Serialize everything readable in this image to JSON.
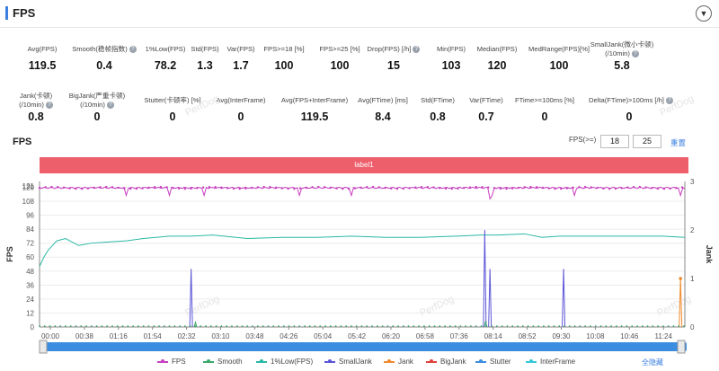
{
  "header": {
    "title": "FPS",
    "collapse_icon": "chevron-down-icon"
  },
  "metrics_row1": [
    {
      "label": "Avg(FPS)",
      "value": "119.5",
      "help": false
    },
    {
      "label": "Smooth(稳帧指数)",
      "value": "0.4",
      "help": true
    },
    {
      "label": "1%Low(FPS)",
      "value": "78.2",
      "help": false
    },
    {
      "label": "Std(FPS)",
      "value": "1.3",
      "help": false
    },
    {
      "label": "Var(FPS)",
      "value": "1.7",
      "help": false
    },
    {
      "label": "FPS>=18 [%]",
      "value": "100",
      "help": false
    },
    {
      "label": "FPS>=25 [%]",
      "value": "100",
      "help": false
    },
    {
      "label": "Drop(FPS) [/h]",
      "value": "15",
      "help": true
    },
    {
      "label": "Min(FPS)",
      "value": "103",
      "help": false
    },
    {
      "label": "Median(FPS)",
      "value": "120",
      "help": false
    },
    {
      "label": "MedRange(FPS)[%]",
      "value": "100",
      "help": false
    },
    {
      "label": "SmallJank(微小卡顿)",
      "label2": "(/10min)",
      "value": "5.8",
      "help": true
    }
  ],
  "metrics_row2": [
    {
      "label": "Jank(卡顿)",
      "label2": "(/10min)",
      "value": "0.8",
      "help": true
    },
    {
      "label": "BigJank(严重卡顿)",
      "label2": "(/10min)",
      "value": "0",
      "help": true
    },
    {
      "label": "Stutter(卡顿率) [%]",
      "value": "0",
      "help": false
    },
    {
      "label": "Avg(InterFrame)",
      "value": "0",
      "help": false
    },
    {
      "label": "Avg(FPS+InterFrame)",
      "value": "119.5",
      "help": false
    },
    {
      "label": "Avg(FTime) [ms]",
      "value": "8.4",
      "help": false
    },
    {
      "label": "Std(FTime)",
      "value": "0.8",
      "help": false
    },
    {
      "label": "Var(FTime)",
      "value": "0.7",
      "help": false
    },
    {
      "label": "FTime>=100ms [%]",
      "value": "0",
      "help": false
    },
    {
      "label": "Delta(FTime)>100ms [/h]",
      "value": "0",
      "help": true
    }
  ],
  "help_icon": "?",
  "fps_section": {
    "title": "FPS",
    "threshold_label": "FPS(>=)",
    "threshold1": "18",
    "threshold2": "25",
    "reset_label": "重置",
    "label_bar": "label1"
  },
  "watermark": "PerfDog",
  "legend": {
    "hide_all": "全隐藏",
    "items": [
      {
        "name": "FPS",
        "color": "#c93fc0"
      },
      {
        "name": "Smooth",
        "color": "#3aa86a"
      },
      {
        "name": "1%Low(FPS)",
        "color": "#2bb8a4"
      },
      {
        "name": "SmallJank",
        "color": "#5b55d8"
      },
      {
        "name": "Jank",
        "color": "#f08a2c"
      },
      {
        "name": "BigJank",
        "color": "#e0413a"
      },
      {
        "name": "Stutter",
        "color": "#3b8de0"
      },
      {
        "name": "InterFrame",
        "color": "#36c8d6"
      }
    ]
  },
  "chart_data": {
    "type": "line",
    "ylabel": "FPS",
    "y2label": "Jank",
    "y_ticks": [
      0,
      12,
      24,
      36,
      48,
      60,
      72,
      84,
      96,
      108,
      120,
      121
    ],
    "ylim": [
      0,
      125
    ],
    "y2_ticks": [
      0,
      1,
      2,
      3
    ],
    "y2lim": [
      0,
      3
    ],
    "x_ticks": [
      "00:00",
      "00:38",
      "01:16",
      "01:54",
      "02:32",
      "03:10",
      "03:48",
      "04:26",
      "05:04",
      "05:42",
      "06:20",
      "06:58",
      "07:36",
      "08:14",
      "08:52",
      "09:30",
      "10:08",
      "10:46",
      "11:24"
    ],
    "duration_s": 745,
    "series": [
      {
        "name": "FPS",
        "axis": "left",
        "values_t": [
          0,
          30,
          60,
          150,
          190,
          250,
          300,
          360,
          440,
          520,
          560,
          600,
          625,
          650,
          700,
          745
        ],
        "values": [
          119.5,
          120,
          119,
          120,
          119.5,
          120,
          119.5,
          120,
          119.8,
          120,
          119,
          120,
          119.5,
          120,
          119.7,
          119
        ]
      },
      {
        "name": "1%Low(FPS)",
        "axis": "left",
        "values_t": [
          0,
          5,
          10,
          20,
          30,
          45,
          60,
          80,
          100,
          120,
          150,
          175,
          200,
          240,
          280,
          320,
          360,
          400,
          440,
          480,
          510,
          530,
          560,
          580,
          600,
          640,
          680,
          720,
          745
        ],
        "values": [
          52,
          60,
          66,
          74,
          76,
          70,
          72,
          73,
          74,
          76,
          78,
          78,
          79,
          76,
          77,
          77,
          78,
          77,
          77,
          78,
          79,
          79,
          80,
          77,
          78,
          78,
          78,
          78,
          77
        ]
      },
      {
        "name": "SmallJank",
        "axis": "right",
        "spikes": [
          {
            "t": 175,
            "v": 1.2
          },
          {
            "t": 514,
            "v": 2.0
          },
          {
            "t": 520,
            "v": 1.2
          },
          {
            "t": 605,
            "v": 1.2
          }
        ]
      },
      {
        "name": "Jank",
        "axis": "right",
        "spikes": [
          {
            "t": 740,
            "v": 1.0
          }
        ]
      },
      {
        "name": "Smooth",
        "axis": "left",
        "spikes": [
          {
            "t": 180,
            "v": 4
          },
          {
            "t": 515,
            "v": 5
          }
        ]
      }
    ]
  }
}
